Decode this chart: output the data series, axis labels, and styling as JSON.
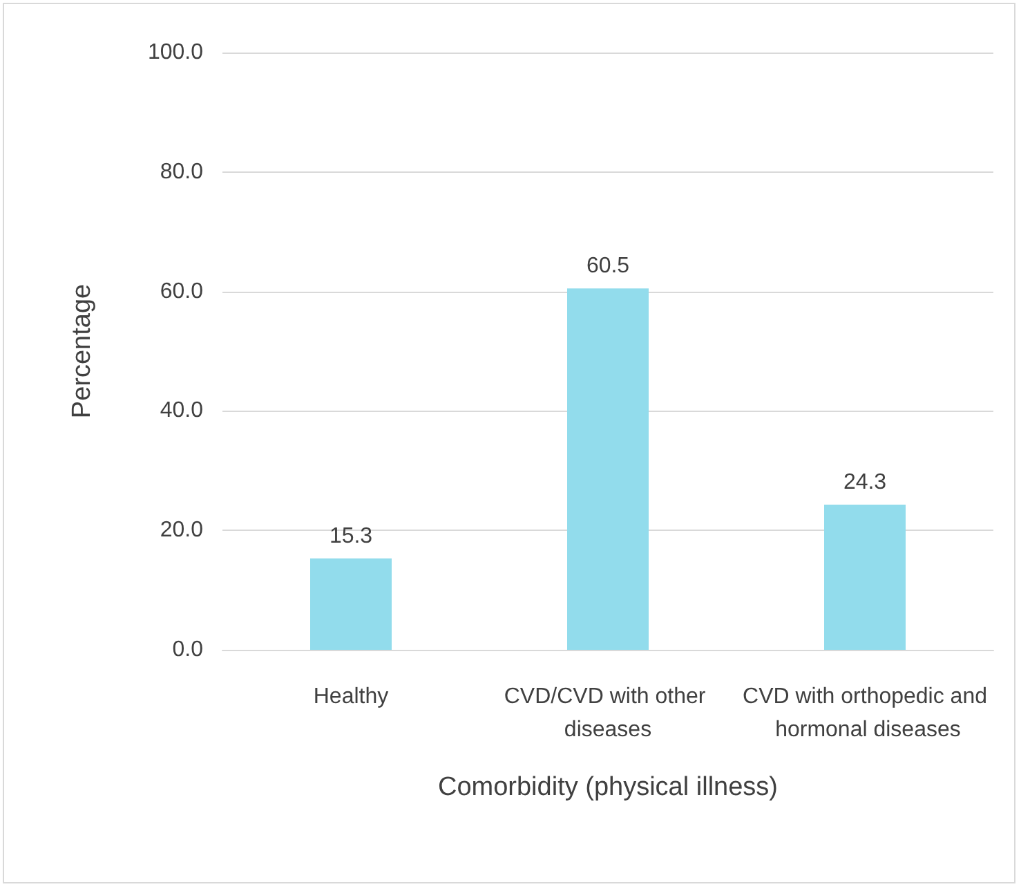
{
  "chart_data": {
    "type": "bar",
    "xlabel": "Comorbidity (physical illness)",
    "ylabel": "Percentage",
    "categories": [
      "Healthy",
      "CVD/CVD with other diseases",
      "CVD with orthopedic and hormonal diseases"
    ],
    "values": [
      15.3,
      60.5,
      24.3
    ],
    "color": "#92dcec",
    "ylim": [
      0,
      100
    ],
    "yticks": [
      {
        "value": 0,
        "label": "0.0"
      },
      {
        "value": 20,
        "label": "20.0"
      },
      {
        "value": 40,
        "label": "40.0"
      },
      {
        "value": 60,
        "label": "60.0"
      },
      {
        "value": 80,
        "label": "80.0"
      },
      {
        "value": 100,
        "label": "100.0"
      }
    ],
    "grid": "y",
    "data_labels": true
  }
}
